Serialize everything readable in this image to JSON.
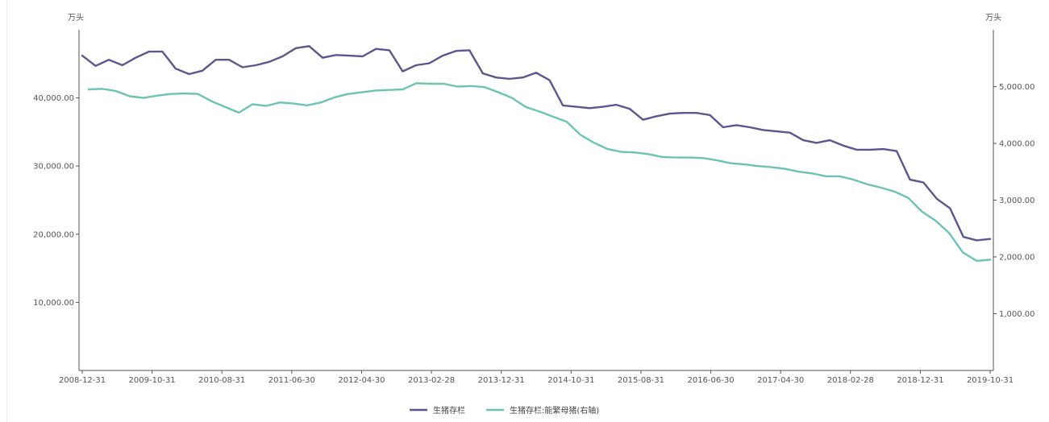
{
  "chart_data": {
    "type": "line",
    "left_unit": "万头",
    "right_unit": "万头",
    "x_tick_labels": [
      "2008-12-31",
      "2009-10-31",
      "2010-08-31",
      "2011-06-30",
      "2012-04-30",
      "2013-02-28",
      "2013-12-31",
      "2014-10-31",
      "2015-08-31",
      "2016-06-30",
      "2017-04-30",
      "2018-02-28",
      "2018-12-31",
      "2019-10-31"
    ],
    "y_left_ticks": [
      "10,000.00",
      "20,000.00",
      "30,000.00",
      "40,000.00"
    ],
    "y_left_tick_values": [
      10000,
      20000,
      30000,
      40000
    ],
    "y_left_range": [
      0,
      50000
    ],
    "y_right_ticks": [
      "1,000.00",
      "2,000.00",
      "3,000.00",
      "4,000.00",
      "5,000.00"
    ],
    "y_right_tick_values": [
      1000,
      2000,
      3000,
      4000,
      5000
    ],
    "y_right_range": [
      0,
      6000
    ],
    "legend_position": "bottom-center",
    "grid": false,
    "series": [
      {
        "name": "生猪存栏",
        "axis": "left",
        "color": "#5b568f",
        "values": [
          46200,
          44700,
          45600,
          44800,
          45900,
          46800,
          46800,
          44300,
          43500,
          44000,
          45600,
          45600,
          44500,
          44800,
          45300,
          46100,
          47300,
          47600,
          45900,
          46300,
          46200,
          46100,
          47200,
          47000,
          43900,
          44800,
          45100,
          46200,
          46900,
          47000,
          43600,
          43000,
          42800,
          43000,
          43700,
          42600,
          38900,
          38700,
          38500,
          38700,
          39000,
          38400,
          36800,
          37300,
          37700,
          37800,
          37800,
          37500,
          35700,
          36000,
          35700,
          35300,
          35100,
          34900,
          33800,
          33400,
          33800,
          33000,
          32400,
          32400,
          32500,
          32200,
          28000,
          27600,
          25200,
          23800,
          19600,
          19100,
          19300
        ]
      },
      {
        "name": "生猪存栏:能繁母猪(右轴)",
        "axis": "right",
        "color": "#6cc3b5",
        "values": [
          4950,
          4960,
          4920,
          4830,
          4800,
          4840,
          4870,
          4880,
          4870,
          4740,
          4640,
          4540,
          4690,
          4660,
          4720,
          4700,
          4670,
          4720,
          4810,
          4870,
          4900,
          4930,
          4940,
          4950,
          5060,
          5050,
          5050,
          5000,
          5010,
          4990,
          4900,
          4800,
          4640,
          4560,
          4470,
          4380,
          4150,
          4010,
          3900,
          3850,
          3840,
          3810,
          3760,
          3750,
          3750,
          3740,
          3700,
          3650,
          3630,
          3600,
          3580,
          3550,
          3500,
          3470,
          3420,
          3420,
          3360,
          3280,
          3220,
          3150,
          3040,
          2800,
          2640,
          2420,
          2080,
          1930,
          1950
        ]
      }
    ]
  }
}
